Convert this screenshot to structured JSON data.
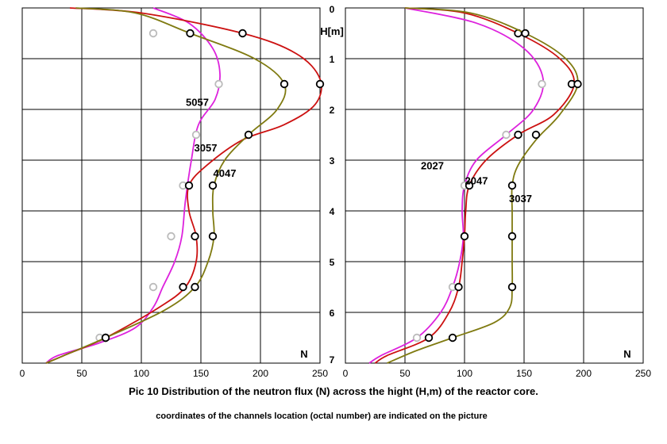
{
  "caption": {
    "title": "Pic 10  Distribution of the neutron flux (N) across the hight (H,m) of the reactor core.",
    "subtitle": "coordinates of the channels location (octal number) are indicated on the picture"
  },
  "axes": {
    "y_label": "H[m]",
    "x_label": "N",
    "y_ticks": [
      "0",
      "1",
      "2",
      "3",
      "4",
      "5",
      "6",
      "7"
    ],
    "x_ticks": [
      "0",
      "50",
      "100",
      "150",
      "200",
      "250"
    ]
  },
  "colors": {
    "red": "#cc1111",
    "olive": "#7f7a10",
    "magenta": "#dd22dd"
  },
  "chart_data": [
    {
      "type": "line",
      "panel": "left",
      "xlabel": "N",
      "ylabel": "H[m]",
      "xlim": [
        0,
        250
      ],
      "ylim": [
        7,
        0
      ],
      "grid": true,
      "series": [
        {
          "name": "5057",
          "color": "magenta",
          "marker_color": "#bbbbbb",
          "curve": [
            [
              110,
              0
            ],
            [
              140,
              0.3
            ],
            [
              160,
              0.8
            ],
            [
              166,
              1.3
            ],
            [
              162,
              1.8
            ],
            [
              148,
              2.3
            ],
            [
              142,
              3
            ],
            [
              137,
              3.8
            ],
            [
              134,
              4.5
            ],
            [
              128,
              5
            ],
            [
              118,
              5.5
            ],
            [
              110,
              5.9
            ],
            [
              95,
              6.3
            ],
            [
              65,
              6.6
            ],
            [
              30,
              6.85
            ],
            [
              20,
              7
            ]
          ],
          "points": [
            [
              110,
              0.5
            ],
            [
              165,
              1.5
            ],
            [
              146,
              2.5
            ],
            [
              135,
              3.5
            ],
            [
              125,
              4.5
            ],
            [
              110,
              5.5
            ],
            [
              65,
              6.5
            ]
          ]
        },
        {
          "name": "3057",
          "color": "red",
          "marker_color": "#000000",
          "curve": [
            [
              40,
              0
            ],
            [
              100,
              0.1
            ],
            [
              185,
              0.5
            ],
            [
              230,
              0.9
            ],
            [
              250,
              1.4
            ],
            [
              246,
              1.9
            ],
            [
              220,
              2.3
            ],
            [
              185,
              2.6
            ],
            [
              155,
              3.1
            ],
            [
              140,
              3.5
            ],
            [
              140,
              4.0
            ],
            [
              146,
              4.5
            ],
            [
              146,
              5.0
            ],
            [
              137,
              5.5
            ],
            [
              115,
              5.9
            ],
            [
              70,
              6.5
            ],
            [
              35,
              6.85
            ],
            [
              20,
              7
            ]
          ],
          "points": [
            [
              185,
              0.5
            ],
            [
              250,
              1.5
            ],
            [
              140,
              3.5
            ],
            [
              145,
              4.5
            ],
            [
              135,
              5.5
            ],
            [
              70,
              6.5
            ]
          ]
        },
        {
          "name": "4047",
          "color": "olive",
          "marker_color": "#000000",
          "curve": [
            [
              45,
              0
            ],
            [
              95,
              0.1
            ],
            [
              141,
              0.5
            ],
            [
              195,
              1.0
            ],
            [
              220,
              1.5
            ],
            [
              214,
              2.0
            ],
            [
              190,
              2.5
            ],
            [
              170,
              3.0
            ],
            [
              161,
              3.5
            ],
            [
              160,
              4.0
            ],
            [
              161,
              4.5
            ],
            [
              156,
              5.0
            ],
            [
              145,
              5.5
            ],
            [
              120,
              5.95
            ],
            [
              70,
              6.5
            ],
            [
              35,
              6.85
            ],
            [
              20,
              7
            ]
          ],
          "points": [
            [
              141,
              0.5
            ],
            [
              220,
              1.5
            ],
            [
              190,
              2.5
            ],
            [
              160,
              3.5
            ],
            [
              160,
              4.5
            ],
            [
              145,
              5.5
            ],
            [
              70,
              6.5
            ]
          ]
        }
      ],
      "annotations": [
        {
          "text": "5057",
          "x": 147,
          "y": 1.85
        },
        {
          "text": "3057",
          "x": 154,
          "y": 2.75
        },
        {
          "text": "4047",
          "x": 170,
          "y": 3.25
        }
      ]
    },
    {
      "type": "line",
      "panel": "right",
      "xlabel": "N",
      "ylabel": "H[m]",
      "xlim": [
        0,
        250
      ],
      "ylim": [
        7,
        0
      ],
      "grid": true,
      "series": [
        {
          "name": "2027",
          "color": "magenta",
          "marker_color": "#bbbbbb",
          "curve": [
            [
              50,
              0
            ],
            [
              110,
              0.3
            ],
            [
              150,
              0.8
            ],
            [
              166,
              1.4
            ],
            [
              158,
              2.0
            ],
            [
              135,
              2.5
            ],
            [
              110,
              3.0
            ],
            [
              100,
              3.5
            ],
            [
              98,
              4.0
            ],
            [
              99,
              4.5
            ],
            [
              96,
              5.0
            ],
            [
              90,
              5.5
            ],
            [
              80,
              6.0
            ],
            [
              60,
              6.5
            ],
            [
              30,
              6.85
            ],
            [
              20,
              7
            ]
          ],
          "points": [
            [
              165,
              1.5
            ],
            [
              135,
              2.5
            ],
            [
              100,
              3.5
            ],
            [
              100,
              4.5
            ],
            [
              90,
              5.5
            ],
            [
              60,
              6.5
            ]
          ]
        },
        {
          "name": "2047",
          "color": "red",
          "marker_color": "#000000",
          "curve": [
            [
              50,
              0
            ],
            [
              100,
              0.1
            ],
            [
              145,
              0.5
            ],
            [
              180,
              1.0
            ],
            [
              192,
              1.5
            ],
            [
              175,
              2.1
            ],
            [
              145,
              2.5
            ],
            [
              118,
              3.0
            ],
            [
              104,
              3.5
            ],
            [
              101,
              4.0
            ],
            [
              100,
              4.5
            ],
            [
              98,
              5.0
            ],
            [
              95,
              5.5
            ],
            [
              87,
              6.0
            ],
            [
              70,
              6.5
            ],
            [
              35,
              6.85
            ],
            [
              25,
              7
            ]
          ],
          "points": [
            [
              145,
              0.5
            ],
            [
              190,
              1.5
            ],
            [
              145,
              2.5
            ],
            [
              104,
              3.5
            ],
            [
              100,
              4.5
            ],
            [
              95,
              5.5
            ],
            [
              70,
              6.5
            ]
          ]
        },
        {
          "name": "3037",
          "color": "olive",
          "marker_color": "#000000",
          "curve": [
            [
              50,
              0
            ],
            [
              105,
              0.1
            ],
            [
              151,
              0.5
            ],
            [
              185,
              1.0
            ],
            [
              195,
              1.5
            ],
            [
              180,
              2.1
            ],
            [
              160,
              2.6
            ],
            [
              145,
              3.1
            ],
            [
              140,
              3.5
            ],
            [
              140,
              4.0
            ],
            [
              140,
              4.5
            ],
            [
              140,
              5.0
            ],
            [
              140,
              5.5
            ],
            [
              138,
              5.9
            ],
            [
              125,
              6.2
            ],
            [
              90,
              6.5
            ],
            [
              60,
              6.75
            ],
            [
              35,
              7
            ]
          ],
          "points": [
            [
              151,
              0.5
            ],
            [
              195,
              1.5
            ],
            [
              160,
              2.5
            ],
            [
              140,
              3.5
            ],
            [
              140,
              4.5
            ],
            [
              140,
              5.5
            ],
            [
              90,
              6.5
            ]
          ]
        }
      ],
      "annotations": [
        {
          "text": "2027",
          "x": 73,
          "y": 3.1
        },
        {
          "text": "2047",
          "x": 110,
          "y": 3.4
        },
        {
          "text": "3037",
          "x": 147,
          "y": 3.75
        }
      ]
    }
  ]
}
